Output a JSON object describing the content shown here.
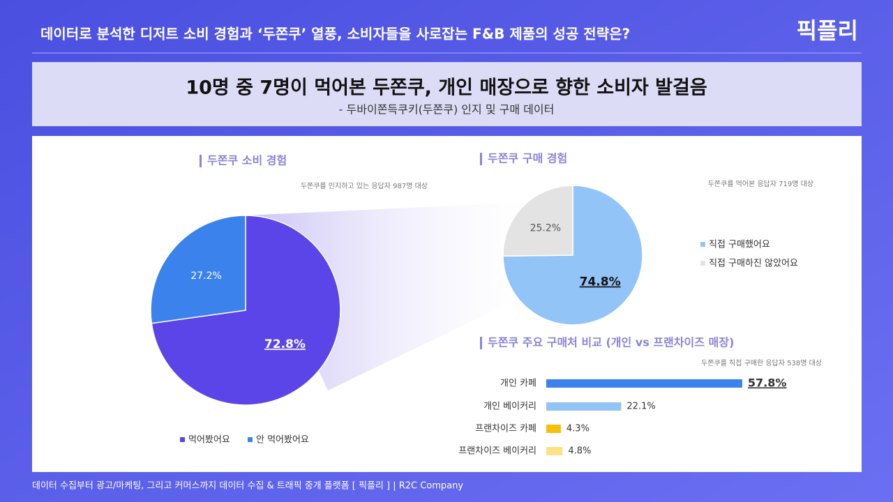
{
  "header": {
    "title": "데이터로 분석한 디저트 소비 경험과 ‘두쫀쿠’ 열풍, 소비자들을 사로잡는 F&B 제품의 성공 전략은?",
    "logo": "픽플리"
  },
  "banner": {
    "title": "10명 중 7명이 먹어본 두쫀쿠, 개인 매장으로 향한 소비자 발걸음",
    "subtitle": "- 두바이쫀득쿠키(두쫀쿠) 인지 및 구매 데이터"
  },
  "chart_data": [
    {
      "type": "pie",
      "title": "두쫀쿠 소비 경험",
      "note": "두쫀쿠를 인지하고 있는 응답자 987명 대상",
      "categories": [
        "먹어봤어요",
        "안 먹어봤어요"
      ],
      "values": [
        72.8,
        27.2
      ],
      "value_labels": [
        "72.8%",
        "27.2%"
      ],
      "colors": [
        "#5b45e8",
        "#3b82ec"
      ],
      "legend": "bottom"
    },
    {
      "type": "pie",
      "title": "두쫀쿠 구매 경험",
      "note": "두쫀쿠를 먹어본 응답자 719명 대상",
      "categories": [
        "직접 구매했어요",
        "직접 구매하진 않았어요"
      ],
      "values": [
        74.8,
        25.2
      ],
      "value_labels": [
        "74.8%",
        "25.2%"
      ],
      "colors": [
        "#93c4f7",
        "#e3e3e3"
      ],
      "legend": "right"
    },
    {
      "type": "bar",
      "title": "두쫀쿠 주요 구매처 비교 (개인 vs 프랜차이즈 매장)",
      "note": "두쫀쿠를 직접 구매한 응답자 538명 대상",
      "categories": [
        "개인 카페",
        "개인 베이커리",
        "프랜차이즈 카페",
        "프랜차이즈 베이커리"
      ],
      "values": [
        57.8,
        22.1,
        4.3,
        4.8
      ],
      "value_labels": [
        "57.8%",
        "22.1%",
        "4.3%",
        "4.8%"
      ],
      "colors": [
        "#3b82ec",
        "#93c4f7",
        "#f5bf0c",
        "#fde28a"
      ]
    }
  ],
  "footer": "데이터 수집부터 광고/마케팅, 그리고 커머스까지 데이터 수집 & 트래픽 중개 플랫폼 [ 픽플리 ]  |  R2C Company"
}
